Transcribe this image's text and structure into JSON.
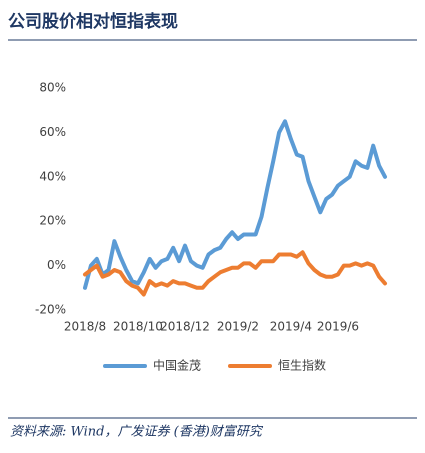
{
  "chart_data": {
    "type": "line",
    "title": "公司股价相对恒指表现",
    "source": "资料来源: Wind，广发证券 (香港)财富研究",
    "categories": [
      "2018/8",
      null,
      null,
      null,
      null,
      null,
      null,
      null,
      null,
      "2018/10",
      null,
      null,
      null,
      null,
      null,
      null,
      null,
      "2018/12",
      null,
      null,
      null,
      null,
      null,
      null,
      null,
      null,
      "2019/2",
      null,
      null,
      null,
      null,
      null,
      null,
      null,
      null,
      "2019/4",
      null,
      null,
      null,
      null,
      null,
      null,
      null,
      "2019/6",
      null,
      null,
      null,
      null,
      null,
      null,
      null,
      null
    ],
    "series": [
      {
        "name": "中国金茂",
        "color": "#5b9bd5",
        "values": [
          -10,
          0,
          3,
          -4,
          -2,
          11,
          4,
          -2,
          -7,
          -8,
          -3,
          3,
          -1,
          2,
          3,
          8,
          2,
          9,
          2,
          0,
          -1,
          5,
          7,
          8,
          12,
          15,
          12,
          14,
          14,
          14,
          22,
          35,
          47,
          60,
          65,
          57,
          50,
          49,
          38,
          31,
          24,
          30,
          32,
          36,
          38,
          40,
          47,
          45,
          44,
          54,
          45,
          40
        ]
      },
      {
        "name": "恒生指数",
        "color": "#ed7d31",
        "values": [
          -4,
          -2,
          0,
          -5,
          -4,
          -2,
          -3,
          -7,
          -9,
          -10,
          -13,
          -7,
          -9,
          -8,
          -9,
          -7,
          -8,
          -8,
          -9,
          -10,
          -10,
          -7,
          -5,
          -3,
          -2,
          -1,
          -1,
          1,
          1,
          -1,
          2,
          2,
          2,
          5,
          5,
          5,
          4,
          6,
          1,
          -2,
          -4,
          -5,
          -5,
          -4,
          0,
          0,
          1,
          0,
          1,
          0,
          -5,
          -8
        ]
      }
    ],
    "ylim": [
      -20,
      80
    ],
    "yticks": [
      {
        "value": -20,
        "label": "-20%"
      },
      {
        "value": 0,
        "label": "0%"
      },
      {
        "value": 20,
        "label": "20%"
      },
      {
        "value": 40,
        "label": "40%"
      },
      {
        "value": 60,
        "label": "60%"
      },
      {
        "value": 80,
        "label": "80%"
      }
    ],
    "grid": false,
    "legend": "bottom"
  }
}
